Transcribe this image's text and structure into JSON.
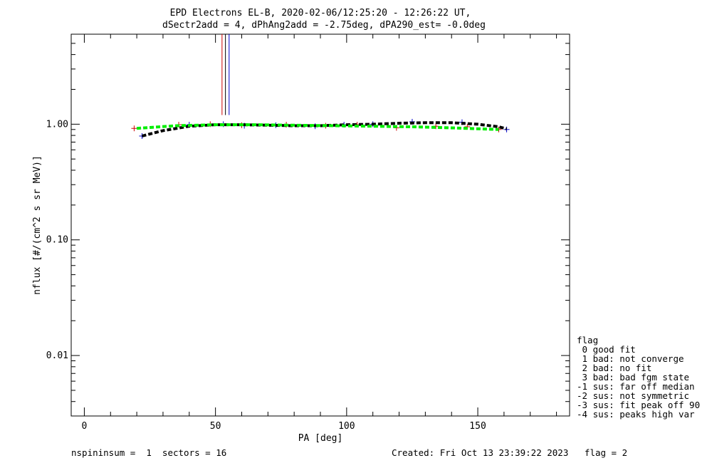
{
  "chart_data": {
    "type": "line",
    "title": "EPD Electrons EL-B, 2020-02-06/12:25:20 - 12:26:22 UT,",
    "subtitle": "dSectr2add = 4, dPhAng2add = -2.75deg, dPA290_est=  -0.0deg",
    "xlabel": "PA [deg]",
    "ylabel": "nflux [#/(cm^2 s sr MeV)]",
    "xlim": [
      -5,
      185
    ],
    "ylim": [
      0.003,
      6
    ],
    "yscale": "log",
    "x_ticks": [
      0,
      50,
      100,
      150
    ],
    "y_ticks": [
      0.01,
      0.1,
      1.0
    ],
    "y_tick_labels": [
      "0.01",
      "0.10",
      "1.00"
    ],
    "grid": false,
    "series": [
      {
        "color": "#cc0000",
        "style": "markers-plus",
        "x": [
          19,
          36,
          48,
          60,
          77,
          92,
          104,
          119,
          134,
          146,
          158
        ],
        "y": [
          0.92,
          0.99,
          1.0,
          0.98,
          0.99,
          0.97,
          0.99,
          0.93,
          0.96,
          0.95,
          0.9
        ]
      },
      {
        "color": "#0000cc",
        "style": "markers-plus",
        "x": [
          22,
          40,
          53,
          61,
          73,
          88,
          99,
          110,
          125,
          144,
          161
        ],
        "y": [
          0.79,
          0.99,
          1.0,
          0.97,
          0.98,
          0.96,
          0.99,
          1.0,
          1.05,
          1.04,
          0.9
        ]
      },
      {
        "color": "#000000",
        "style": "dashed-thick",
        "x": [
          22,
          30,
          40,
          50,
          60,
          70,
          80,
          90,
          100,
          110,
          120,
          130,
          140,
          150,
          158,
          161
        ],
        "y": [
          0.79,
          0.88,
          0.96,
          0.99,
          0.99,
          0.98,
          0.97,
          0.97,
          0.99,
          1.0,
          1.02,
          1.03,
          1.03,
          1.0,
          0.95,
          0.91
        ]
      },
      {
        "color": "#00ee00",
        "style": "dashed-thick",
        "x": [
          20,
          35,
          50,
          65,
          80,
          95,
          110,
          125,
          140,
          158
        ],
        "y": [
          0.92,
          0.97,
          0.99,
          0.99,
          0.98,
          0.97,
          0.96,
          0.95,
          0.93,
          0.9
        ]
      }
    ],
    "vlines": [
      {
        "x": 52.5,
        "color": "#cc0000",
        "y_from": 1.2,
        "y_to": 6
      },
      {
        "x": 53.8,
        "color": "#000000",
        "y_from": 1.2,
        "y_to": 6
      },
      {
        "x": 55.2,
        "color": "#0000cc",
        "y_from": 1.2,
        "y_to": 6
      }
    ]
  },
  "legend": {
    "title": "flag",
    "items": [
      " 0 good fit",
      " 1 bad: not converge",
      " 2 bad: no fit",
      " 3 bad: bad fgm state",
      "-1 sus: far off median",
      "-2 sus: not symmetric",
      "-3 sus: fit peak off 90",
      "-4 sus: peaks high var"
    ]
  },
  "footer": {
    "left": "nspininsum =  1  sectors = 16",
    "right": "Created: Fri Oct 13 23:39:22 2023   flag = 2"
  }
}
